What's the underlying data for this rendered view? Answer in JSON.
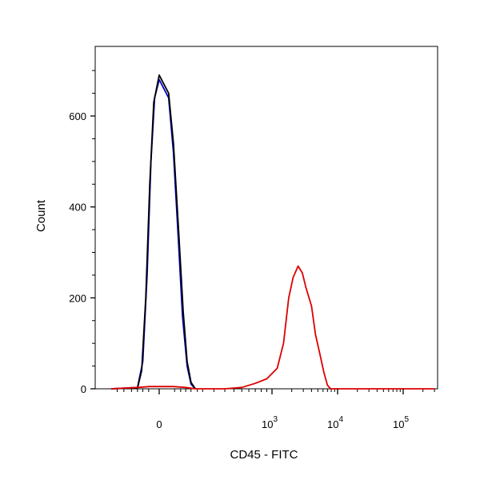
{
  "chart_data": {
    "type": "line",
    "title": "",
    "xlabel": "CD45 - FITC",
    "ylabel": "Count",
    "x_scale": "biexponential",
    "x_ticks": [
      {
        "base": "0",
        "exp": ""
      },
      {
        "base": "10",
        "exp": "3"
      },
      {
        "base": "10",
        "exp": "4"
      },
      {
        "base": "10",
        "exp": "5"
      }
    ],
    "y_ticks": [
      "0",
      "200",
      "400",
      "600"
    ],
    "ylim": [
      0,
      760
    ],
    "grid": false,
    "legend": "none",
    "series": [
      {
        "color": "#0000cc",
        "points": [
          [
            -150,
            0
          ],
          [
            -40,
            3
          ],
          [
            -25,
            60
          ],
          [
            -15,
            250
          ],
          [
            -8,
            500
          ],
          [
            -3,
            640
          ],
          [
            0,
            680
          ],
          [
            4,
            640
          ],
          [
            10,
            520
          ],
          [
            20,
            320
          ],
          [
            30,
            160
          ],
          [
            45,
            50
          ],
          [
            60,
            10
          ],
          [
            80,
            0
          ]
        ]
      },
      {
        "color": "#000000",
        "points": [
          [
            -150,
            0
          ],
          [
            -40,
            2
          ],
          [
            -28,
            40
          ],
          [
            -18,
            200
          ],
          [
            -10,
            450
          ],
          [
            -4,
            630
          ],
          [
            0,
            690
          ],
          [
            4,
            650
          ],
          [
            10,
            540
          ],
          [
            20,
            350
          ],
          [
            32,
            170
          ],
          [
            45,
            60
          ],
          [
            60,
            14
          ],
          [
            80,
            0
          ]
        ]
      },
      {
        "color": "#dd0000",
        "points": [
          [
            -150,
            0
          ],
          [
            -40,
            3
          ],
          [
            -10,
            5
          ],
          [
            10,
            5
          ],
          [
            40,
            3
          ],
          [
            80,
            0
          ],
          [
            300,
            0
          ],
          [
            500,
            3
          ],
          [
            700,
            12
          ],
          [
            900,
            22
          ],
          [
            1200,
            45
          ],
          [
            1500,
            100
          ],
          [
            1800,
            200
          ],
          [
            2100,
            245
          ],
          [
            2500,
            270
          ],
          [
            2900,
            255
          ],
          [
            3300,
            222
          ],
          [
            4000,
            182
          ],
          [
            4600,
            120
          ],
          [
            5300,
            80
          ],
          [
            6200,
            35
          ],
          [
            7000,
            8
          ],
          [
            7800,
            0
          ],
          [
            300000,
            0
          ]
        ]
      }
    ]
  }
}
